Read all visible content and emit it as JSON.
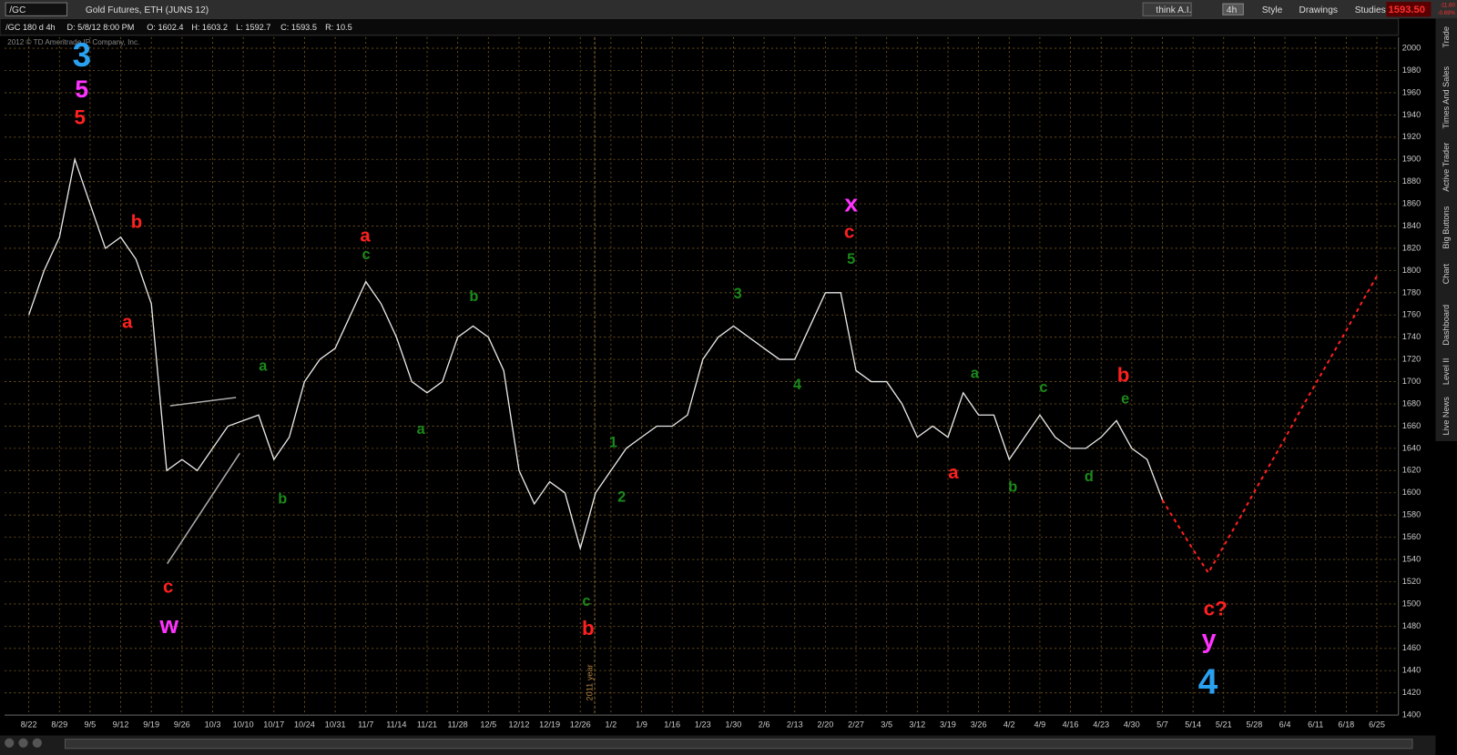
{
  "header": {
    "symbol": "/GC",
    "description": "Gold Futures, ETH (JUNS 12)",
    "think": "think A.I.",
    "period": "4h",
    "style": "Style",
    "drawings": "Drawings",
    "studies": "Studies",
    "last": "1593.50",
    "change": "-11.60",
    "change_pct": "-0.69%"
  },
  "info_bar": {
    "aggregation": "/GC 180 d 4h",
    "date": "D: 5/8/12 8:00 PM",
    "open": "O: 1602.4",
    "high": "H: 1603.2",
    "low": "L: 1592.7",
    "close": "C: 1593.5",
    "range": "R: 10.5"
  },
  "copyright": "2012 © TD Ameritrade IP Company, Inc.",
  "sidebar": [
    "Trade",
    "Times And Sales",
    "Active Trader",
    "Big Buttons",
    "Chart",
    "Dashboard",
    "Level II",
    "Live News"
  ],
  "chart_data": {
    "type": "line",
    "grid": true,
    "background": "#000000",
    "grid_color": "#7a5a20",
    "year_marker": "2011 year",
    "categories": [
      "8/22",
      null,
      "8/29",
      null,
      "9/5",
      null,
      "9/12",
      null,
      "9/19",
      null,
      "9/26",
      null,
      "10/3",
      null,
      "10/10",
      null,
      "10/17",
      null,
      "10/24",
      null,
      "10/31",
      null,
      "11/7",
      null,
      "11/14",
      null,
      "11/21",
      null,
      "11/28",
      null,
      "12/5",
      null,
      "12/12",
      null,
      "12/19",
      null,
      "12/26",
      null,
      "1/2",
      null,
      "1/9",
      null,
      "1/16",
      null,
      "1/23",
      null,
      "1/30",
      null,
      "2/6",
      null,
      "2/13",
      null,
      "2/20",
      null,
      "2/27",
      null,
      "3/5",
      null,
      "3/12",
      null,
      "3/19",
      null,
      "3/26",
      null,
      "4/2",
      null,
      "4/9",
      null,
      "4/16",
      null,
      "4/23",
      null,
      "4/30",
      null,
      "5/7",
      null,
      "5/14",
      null,
      "5/21",
      null,
      "5/28",
      null,
      "6/4",
      null,
      "6/11",
      null,
      "6/18",
      null,
      "6/25"
    ],
    "series": [
      {
        "color": "#e8e8e8",
        "dashed": false,
        "values": [
          1760,
          1800,
          1830,
          1900,
          1860,
          1820,
          1830,
          1810,
          1770,
          1620,
          1630,
          1620,
          1640,
          1660,
          1665,
          1670,
          1630,
          1650,
          1700,
          1720,
          1730,
          1760,
          1790,
          1770,
          1740,
          1700,
          1690,
          1700,
          1740,
          1750,
          1740,
          1710,
          1620,
          1590,
          1610,
          1600,
          1550,
          1600,
          1620,
          1640,
          1650,
          1660,
          1660,
          1670,
          1720,
          1740,
          1750,
          1740,
          1730,
          1720,
          1720,
          1750,
          1780,
          1780,
          1710,
          1700,
          1700,
          1680,
          1650,
          1660,
          1650,
          1690,
          1670,
          1670,
          1630,
          1650,
          1670,
          1650,
          1640,
          1640,
          1650,
          1665,
          1640,
          1630,
          1593.5,
          null,
          null,
          null,
          null,
          null,
          null,
          null,
          null,
          null,
          null,
          null,
          null,
          null,
          null
        ]
      },
      {
        "color": "#ff2020",
        "dashed": true,
        "values": [
          null,
          null,
          null,
          null,
          null,
          null,
          null,
          null,
          null,
          null,
          null,
          null,
          null,
          null,
          null,
          null,
          null,
          null,
          null,
          null,
          null,
          null,
          null,
          null,
          null,
          null,
          null,
          null,
          null,
          null,
          null,
          null,
          null,
          null,
          null,
          null,
          null,
          null,
          null,
          null,
          null,
          null,
          null,
          null,
          null,
          null,
          null,
          null,
          null,
          null,
          null,
          null,
          null,
          null,
          null,
          null,
          null,
          null,
          null,
          null,
          null,
          null,
          null,
          null,
          null,
          null,
          null,
          null,
          null,
          null,
          null,
          null,
          null,
          null,
          1593.5,
          1571,
          1549,
          1528,
          1552,
          1576,
          1601,
          1625,
          1649,
          1674,
          1698,
          1722,
          1746,
          1771,
          1795
        ]
      }
    ],
    "ylim": [
      1400,
      2010
    ],
    "yticks": [
      1400,
      1420,
      1440,
      1460,
      1480,
      1500,
      1520,
      1540,
      1560,
      1580,
      1600,
      1620,
      1640,
      1660,
      1680,
      1700,
      1720,
      1740,
      1760,
      1780,
      1800,
      1820,
      1840,
      1860,
      1880,
      1900,
      1920,
      1940,
      1960,
      1980,
      2000
    ],
    "annotations": [
      {
        "text": "3",
        "color": "#2aa0f0"
      },
      {
        "text": "5",
        "color": "#ff33ff"
      },
      {
        "text": "5",
        "color": "#ff2020"
      },
      {
        "text": "b",
        "color": "#ff2020"
      },
      {
        "text": "a",
        "color": "#ff2020"
      },
      {
        "text": "c",
        "color": "#ff2020"
      },
      {
        "text": "w",
        "color": "#ff33ff"
      },
      {
        "text": "a",
        "color": "#1a8a1a"
      },
      {
        "text": "b",
        "color": "#1a8a1a"
      },
      {
        "text": "a",
        "color": "#ff2020"
      },
      {
        "text": "c",
        "color": "#1a8a1a"
      },
      {
        "text": "a",
        "color": "#1a8a1a"
      },
      {
        "text": "b",
        "color": "#1a8a1a"
      },
      {
        "text": "c",
        "color": "#1a8a1a"
      },
      {
        "text": "b",
        "color": "#ff2020"
      },
      {
        "text": "1",
        "color": "#1a8a1a"
      },
      {
        "text": "2",
        "color": "#1a8a1a"
      },
      {
        "text": "3",
        "color": "#1a8a1a"
      },
      {
        "text": "4",
        "color": "#1a8a1a"
      },
      {
        "text": "5",
        "color": "#1a8a1a"
      },
      {
        "text": "c",
        "color": "#ff2020"
      },
      {
        "text": "x",
        "color": "#ff33ff"
      },
      {
        "text": "a",
        "color": "#ff2020"
      },
      {
        "text": "a",
        "color": "#1a8a1a"
      },
      {
        "text": "b",
        "color": "#1a8a1a"
      },
      {
        "text": "c",
        "color": "#1a8a1a"
      },
      {
        "text": "d",
        "color": "#1a8a1a"
      },
      {
        "text": "b",
        "color": "#ff2020"
      },
      {
        "text": "e",
        "color": "#1a8a1a"
      },
      {
        "text": "c?",
        "color": "#ff2020"
      },
      {
        "text": "y",
        "color": "#ff33ff"
      },
      {
        "text": "4",
        "color": "#2aa0f0"
      }
    ]
  }
}
